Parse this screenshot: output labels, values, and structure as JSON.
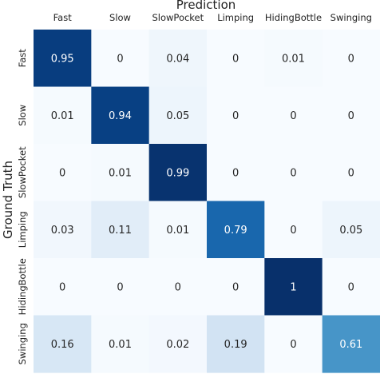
{
  "chart_data": {
    "type": "heatmap",
    "title": "",
    "xlabel": "Prediction",
    "ylabel": "Ground Truth",
    "columns": [
      "Fast",
      "Slow",
      "SlowPocket",
      "Limping",
      "HidingBottle",
      "Swinging"
    ],
    "rows": [
      "Fast",
      "Slow",
      "SlowPocket",
      "Limping",
      "HidingBottle",
      "Swinging"
    ],
    "values": [
      [
        0.95,
        0,
        0.04,
        0,
        0.01,
        0
      ],
      [
        0.01,
        0.94,
        0.05,
        0,
        0,
        0
      ],
      [
        0,
        0.01,
        0.99,
        0,
        0,
        0
      ],
      [
        0.03,
        0.11,
        0.01,
        0.79,
        0,
        0.05
      ],
      [
        0,
        0,
        0,
        0,
        1,
        0
      ],
      [
        0.16,
        0.01,
        0.02,
        0.19,
        0,
        0.61
      ]
    ],
    "colormap": "Blues",
    "range": [
      0,
      1
    ]
  }
}
